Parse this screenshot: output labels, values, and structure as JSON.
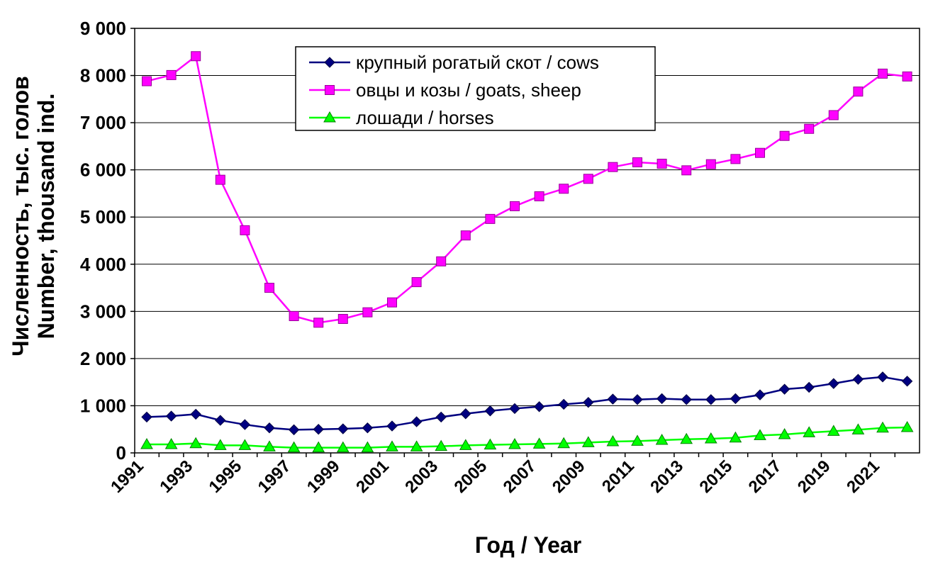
{
  "chart_data": {
    "type": "line",
    "title": "",
    "xlabel": "Год / Year",
    "ylabel_line1": "Численность, тыс. голов",
    "ylabel_line2": "Number, thousand ind.",
    "ylim": [
      0,
      9000
    ],
    "grid": true,
    "legend_position": "top-center",
    "y_ticks": [
      "0",
      "1 000",
      "2 000",
      "3 000",
      "4 000",
      "5 000",
      "6 000",
      "7 000",
      "8 000",
      "9 000"
    ],
    "x_tick_labels": [
      "1991",
      "1993",
      "1995",
      "1997",
      "1999",
      "2001",
      "2003",
      "2005",
      "2007",
      "2009",
      "2011",
      "2013",
      "2015",
      "2017",
      "2019",
      "2021"
    ],
    "x": [
      1991,
      1992,
      1993,
      1994,
      1995,
      1996,
      1997,
      1998,
      1999,
      2000,
      2001,
      2002,
      2003,
      2004,
      2005,
      2006,
      2007,
      2008,
      2009,
      2010,
      2011,
      2012,
      2013,
      2014,
      2015,
      2016,
      2017,
      2018,
      2019,
      2020,
      2021,
      2022
    ],
    "series": [
      {
        "name": "крупный рогатый скот / cows",
        "color": "#000080",
        "marker": "diamond",
        "values": [
          760,
          780,
          820,
          690,
          600,
          530,
          490,
          500,
          510,
          530,
          570,
          660,
          760,
          830,
          890,
          940,
          980,
          1030,
          1070,
          1140,
          1130,
          1150,
          1130,
          1130,
          1150,
          1230,
          1350,
          1390,
          1470,
          1560,
          1610,
          1520
        ]
      },
      {
        "name": "овцы и козы / goats, sheep",
        "color": "#ff00ff",
        "marker": "square",
        "values": [
          7880,
          8010,
          8410,
          5790,
          4720,
          3500,
          2900,
          2760,
          2840,
          2980,
          3190,
          3620,
          4060,
          4610,
          4960,
          5230,
          5440,
          5600,
          5810,
          6060,
          6160,
          6130,
          5990,
          6120,
          6230,
          6360,
          6720,
          6870,
          7160,
          7660,
          8040,
          7980
        ]
      },
      {
        "name": "лошади / horses",
        "color": "#00ff00",
        "marker": "triangle",
        "values": [
          180,
          180,
          200,
          160,
          160,
          130,
          110,
          110,
          110,
          110,
          130,
          130,
          140,
          160,
          170,
          180,
          190,
          200,
          220,
          240,
          250,
          270,
          290,
          300,
          320,
          370,
          390,
          430,
          460,
          490,
          530,
          540
        ]
      }
    ]
  }
}
